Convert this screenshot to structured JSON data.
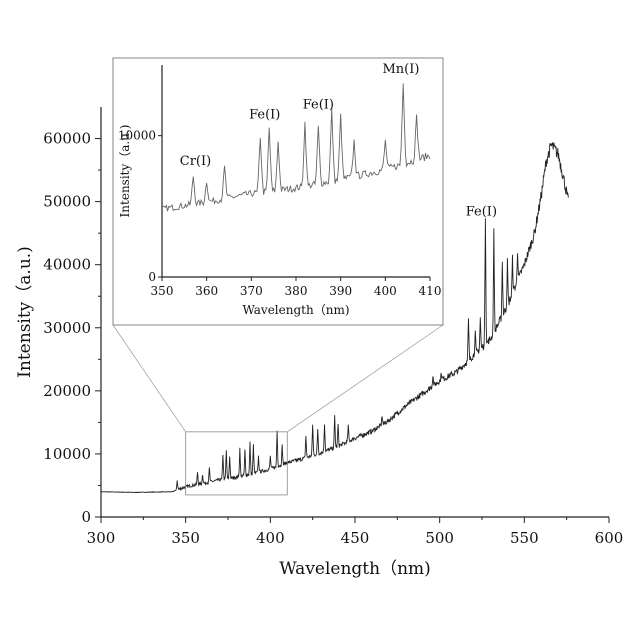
{
  "chart_data": [
    {
      "type": "line",
      "title": "",
      "xlabel": "Wavelength（nm)",
      "ylabel": "Intensity（a.u.)",
      "xlim": [
        300,
        600
      ],
      "ylim": [
        0,
        65000
      ],
      "x_ticks": [
        "300",
        "350",
        "400",
        "450",
        "500",
        "550",
        "600"
      ],
      "y_ticks": [
        "0",
        "10000",
        "20000",
        "30000",
        "40000",
        "50000",
        "60000"
      ],
      "grid": false,
      "legend": "none",
      "annotations": [
        {
          "text": "Fe(I)",
          "x": 527,
          "y": 46500
        }
      ],
      "baseline": [
        [
          300,
          4000
        ],
        [
          320,
          3900
        ],
        [
          342,
          4000
        ],
        [
          350,
          4800
        ],
        [
          360,
          5300
        ],
        [
          370,
          5900
        ],
        [
          380,
          6300
        ],
        [
          390,
          6900
        ],
        [
          400,
          7600
        ],
        [
          410,
          8600
        ],
        [
          420,
          9300
        ],
        [
          430,
          10200
        ],
        [
          440,
          11200
        ],
        [
          450,
          12500
        ],
        [
          460,
          13600
        ],
        [
          470,
          15300
        ],
        [
          480,
          17600
        ],
        [
          490,
          19600
        ],
        [
          500,
          21600
        ],
        [
          510,
          23000
        ],
        [
          520,
          25600
        ],
        [
          530,
          28200
        ],
        [
          540,
          33500
        ],
        [
          550,
          40000
        ],
        [
          556,
          45000
        ],
        [
          560,
          51000
        ],
        [
          563,
          56500
        ],
        [
          566,
          59000
        ],
        [
          570,
          57500
        ],
        [
          573,
          54000
        ],
        [
          576,
          50000
        ]
      ],
      "peaks": [
        [
          345,
          1500
        ],
        [
          357,
          2000
        ],
        [
          360,
          1500
        ],
        [
          364,
          2200
        ],
        [
          372,
          4000
        ],
        [
          374,
          4500
        ],
        [
          376,
          3500
        ],
        [
          382,
          4500
        ],
        [
          385,
          4000
        ],
        [
          388,
          5000
        ],
        [
          390,
          4500
        ],
        [
          393,
          2500
        ],
        [
          400,
          2000
        ],
        [
          404,
          5700
        ],
        [
          407,
          3000
        ],
        [
          421,
          3500
        ],
        [
          425,
          5000
        ],
        [
          428,
          4000
        ],
        [
          432,
          4500
        ],
        [
          438,
          5000
        ],
        [
          440,
          3500
        ],
        [
          446,
          2500
        ],
        [
          466,
          1500
        ],
        [
          496,
          1700
        ],
        [
          501,
          1200
        ],
        [
          517,
          6500
        ],
        [
          521,
          3500
        ],
        [
          524,
          5000
        ],
        [
          527,
          20500
        ],
        [
          532,
          16000
        ],
        [
          537,
          8500
        ],
        [
          540,
          7000
        ],
        [
          543,
          5500
        ],
        [
          546,
          5000
        ]
      ],
      "zoom_region": {
        "x": [
          350,
          410
        ],
        "y": [
          3500,
          13500
        ]
      }
    },
    {
      "type": "line",
      "title": "",
      "xlabel": "Wavelength（nm)",
      "ylabel": "Intensity（a.u.)",
      "xlim": [
        350,
        410
      ],
      "ylim": [
        0,
        15000
      ],
      "x_ticks": [
        "350",
        "360",
        "370",
        "380",
        "390",
        "400",
        "410"
      ],
      "y_ticks": [
        "0",
        "10000"
      ],
      "grid": false,
      "legend": "none",
      "annotations": [
        {
          "text": "Cr(I)",
          "x": 357.5,
          "y": 7500
        },
        {
          "text": "Fe(I)",
          "x": 373,
          "y": 10800
        },
        {
          "text": "Fe(I)",
          "x": 385,
          "y": 11500
        },
        {
          "text": "Mn(I)",
          "x": 403.5,
          "y": 14000
        }
      ]
    }
  ]
}
